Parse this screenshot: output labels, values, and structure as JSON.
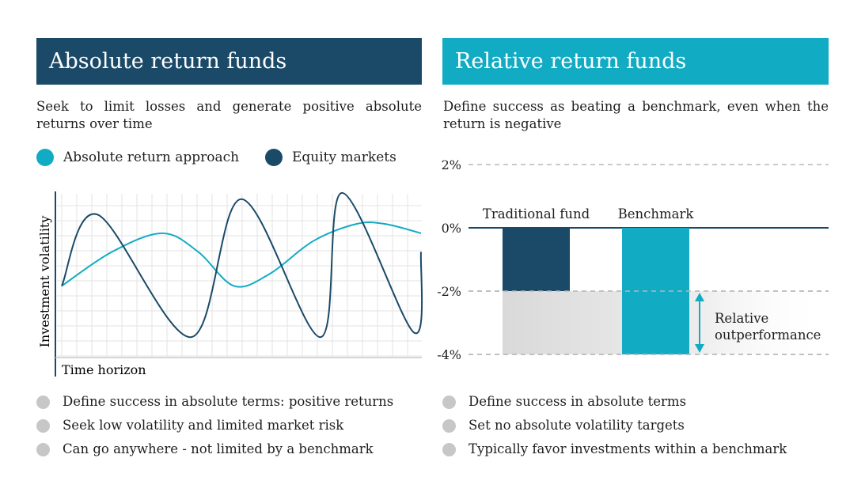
{
  "left_panel": {
    "title": "Absolute return funds",
    "description": "Seek to limit losses and generate positive absolute returns over time",
    "legend": [
      {
        "label": "Absolute return approach",
        "color": "#12abc4"
      },
      {
        "label": "Equity markets",
        "color": "#1b4a68"
      }
    ],
    "bullets": [
      "Define success in absolute terms: positive returns",
      "Seek low volatility and limited market risk",
      "Can go anywhere - not limited by a benchmark"
    ]
  },
  "right_panel": {
    "title": "Relative return funds",
    "description": "Define success as beating a benchmark, even when the return is negative",
    "bullets": [
      "Define success in absolute terms",
      "Set no absolute volatility targets",
      "Typically favor investments within a benchmark"
    ]
  },
  "colors": {
    "dark_navy": "#1b4a68",
    "teal": "#12abc4",
    "gray": "#d9d9d9",
    "grid": "#e3e3e3",
    "bullet": "#c7c7c7"
  },
  "chart_data": [
    {
      "type": "line",
      "xlabel": "Time horizon",
      "ylabel": "Investment volatility",
      "grid": true,
      "series": [
        {
          "name": "Absolute return approach",
          "color": "#12abc4",
          "x": [
            0,
            0.14,
            0.28,
            0.38,
            0.48,
            0.58,
            0.7,
            0.82,
            0.9,
            1.0
          ],
          "y": [
            0.38,
            0.6,
            0.72,
            0.6,
            0.38,
            0.46,
            0.67,
            0.78,
            0.78,
            0.72
          ]
        },
        {
          "name": "Equity markets",
          "color": "#1b4a68",
          "x": [
            0,
            0.1,
            0.36,
            0.5,
            0.72,
            0.78,
            0.98,
            1.0
          ],
          "y": [
            0.38,
            0.84,
            0.05,
            0.94,
            0.05,
            0.98,
            0.08,
            0.6
          ]
        }
      ]
    },
    {
      "type": "bar",
      "categories": [
        "Traditional fund",
        "Benchmark"
      ],
      "values": [
        -2,
        -4
      ],
      "colors": [
        "#1b4a68",
        "#12abc4"
      ],
      "ylim": [
        -4,
        2
      ],
      "yticks": [
        "2%",
        "0%",
        "-2%",
        "-4%"
      ],
      "ytick_values": [
        2,
        0,
        -2,
        -4
      ],
      "annotation": "Relative outperformance",
      "outperformance_range": [
        -4,
        -2
      ]
    }
  ]
}
